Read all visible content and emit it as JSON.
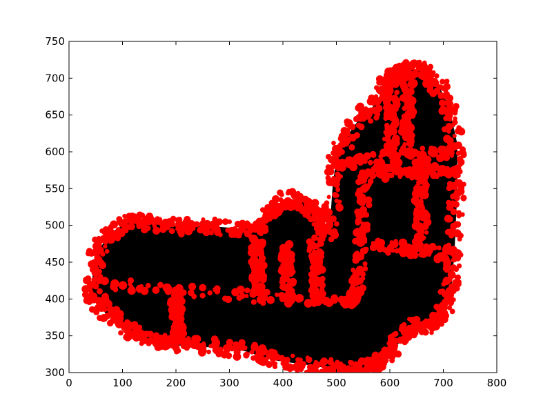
{
  "chart_data": {
    "type": "scatter",
    "title": "",
    "xlabel": "",
    "ylabel": "",
    "xlim": [
      0,
      800
    ],
    "ylim": [
      300,
      750
    ],
    "xticks": [
      0,
      100,
      200,
      300,
      400,
      500,
      600,
      700,
      800
    ],
    "yticks": [
      300,
      350,
      400,
      450,
      500,
      550,
      600,
      650,
      700,
      750
    ],
    "grid": false,
    "legend": "none",
    "series": [
      {
        "marker": "star",
        "color": "#000000",
        "region_outline": [
          [
            42,
            410
          ],
          [
            50,
            460
          ],
          [
            80,
            490
          ],
          [
            120,
            508
          ],
          [
            160,
            502
          ],
          [
            210,
            498
          ],
          [
            260,
            498
          ],
          [
            320,
            495
          ],
          [
            360,
            498
          ],
          [
            380,
            520
          ],
          [
            410,
            536
          ],
          [
            440,
            530
          ],
          [
            470,
            510
          ],
          [
            488,
            488
          ],
          [
            495,
            560
          ],
          [
            505,
            605
          ],
          [
            540,
            640
          ],
          [
            575,
            665
          ],
          [
            600,
            700
          ],
          [
            630,
            710
          ],
          [
            660,
            712
          ],
          [
            690,
            690
          ],
          [
            710,
            660
          ],
          [
            725,
            610
          ],
          [
            725,
            550
          ],
          [
            720,
            470
          ],
          [
            715,
            420
          ],
          [
            700,
            380
          ],
          [
            670,
            362
          ],
          [
            640,
            364
          ],
          [
            610,
            335
          ],
          [
            580,
            315
          ],
          [
            540,
            305
          ],
          [
            500,
            305
          ],
          [
            440,
            312
          ],
          [
            380,
            318
          ],
          [
            330,
            330
          ],
          [
            270,
            335
          ],
          [
            200,
            338
          ],
          [
            150,
            345
          ],
          [
            110,
            360
          ],
          [
            70,
            380
          ]
        ]
      },
      {
        "marker": "circle",
        "color": "#ff0000",
        "segments": [
          [
            [
              45,
              420
            ],
            [
              520,
              395
            ]
          ],
          [
            [
              520,
              395
            ],
            [
              540,
              410
            ]
          ],
          [
            [
              540,
              410
            ],
            [
              555,
              570
            ]
          ],
          [
            [
              555,
              570
            ],
            [
              715,
              575
            ]
          ],
          [
            [
              495,
              585
            ],
            [
              715,
              600
            ]
          ],
          [
            [
              560,
              475
            ],
            [
              720,
              460
            ]
          ],
          [
            [
              600,
              600
            ],
            [
              605,
              700
            ]
          ],
          [
            [
              630,
              600
            ],
            [
              635,
              690
            ]
          ],
          [
            [
              655,
              600
            ],
            [
              660,
              470
            ]
          ],
          [
            [
              200,
              400
            ],
            [
              205,
              340
            ]
          ],
          [
            [
              350,
              480
            ],
            [
              355,
              400
            ]
          ],
          [
            [
              405,
              470
            ],
            [
              410,
              400
            ]
          ],
          [
            [
              460,
              480
            ],
            [
              465,
              400
            ]
          ]
        ],
        "region_outline": [
          [
            42,
            410
          ],
          [
            50,
            460
          ],
          [
            80,
            490
          ],
          [
            120,
            508
          ],
          [
            160,
            502
          ],
          [
            210,
            498
          ],
          [
            260,
            498
          ],
          [
            320,
            495
          ],
          [
            360,
            498
          ],
          [
            380,
            520
          ],
          [
            410,
            536
          ],
          [
            440,
            530
          ],
          [
            470,
            510
          ],
          [
            488,
            488
          ],
          [
            495,
            560
          ],
          [
            505,
            605
          ],
          [
            540,
            640
          ],
          [
            575,
            665
          ],
          [
            600,
            700
          ],
          [
            630,
            710
          ],
          [
            660,
            712
          ],
          [
            690,
            690
          ],
          [
            710,
            660
          ],
          [
            725,
            610
          ],
          [
            725,
            550
          ],
          [
            720,
            470
          ],
          [
            715,
            420
          ],
          [
            700,
            380
          ],
          [
            670,
            362
          ],
          [
            640,
            364
          ],
          [
            610,
            335
          ],
          [
            580,
            315
          ],
          [
            540,
            305
          ],
          [
            500,
            305
          ],
          [
            440,
            312
          ],
          [
            380,
            318
          ],
          [
            330,
            330
          ],
          [
            270,
            335
          ],
          [
            200,
            338
          ],
          [
            150,
            345
          ],
          [
            110,
            360
          ],
          [
            70,
            380
          ]
        ]
      }
    ]
  }
}
